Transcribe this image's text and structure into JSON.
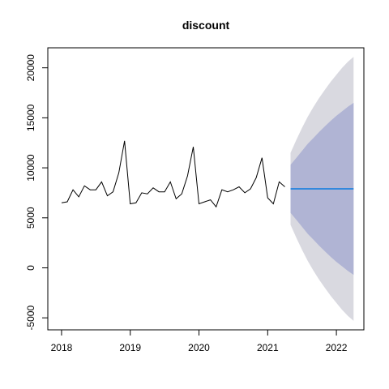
{
  "chart_data": {
    "type": "line",
    "title": "discount",
    "xlabel": "",
    "ylabel": "",
    "xlim": [
      2017.8,
      2022.4
    ],
    "ylim": [
      -6200,
      22000
    ],
    "x_ticks": [
      2018,
      2019,
      2020,
      2021,
      2022
    ],
    "x_tick_labels": [
      "2018",
      "2019",
      "2020",
      "2021",
      "2022"
    ],
    "y_ticks": [
      -5000,
      0,
      5000,
      10000,
      15000,
      20000
    ],
    "y_tick_labels": [
      "-5000",
      "0",
      "5000",
      "10000",
      "15000",
      "20000"
    ],
    "grid": false,
    "frequency": "monthly",
    "colors": {
      "observed": "#000000",
      "forecast": "#3388dd",
      "band_inner": "#b0b4d4",
      "band_outer": "#d9d9e0"
    },
    "series": [
      {
        "role": "observed",
        "x": [
          2018.0,
          2018.083,
          2018.167,
          2018.25,
          2018.333,
          2018.417,
          2018.5,
          2018.583,
          2018.667,
          2018.75,
          2018.833,
          2018.917,
          2019.0,
          2019.083,
          2019.167,
          2019.25,
          2019.333,
          2019.417,
          2019.5,
          2019.583,
          2019.667,
          2019.75,
          2019.833,
          2019.917,
          2020.0,
          2020.083,
          2020.167,
          2020.25,
          2020.333,
          2020.417,
          2020.5,
          2020.583,
          2020.667,
          2020.75,
          2020.833,
          2020.917,
          2021.0,
          2021.083,
          2021.167,
          2021.25
        ],
        "values": [
          6500,
          6600,
          7800,
          7100,
          8200,
          7800,
          7800,
          8600,
          7200,
          7600,
          9500,
          12700,
          6400,
          6500,
          7500,
          7400,
          8000,
          7600,
          7600,
          8600,
          6900,
          7400,
          9200,
          12100,
          6400,
          6600,
          6800,
          6100,
          7800,
          7600,
          7800,
          8100,
          7500,
          7900,
          9000,
          11000,
          7000,
          6400,
          8600,
          8100
        ]
      },
      {
        "role": "forecast",
        "x": [
          2021.333,
          2022.25
        ],
        "values": [
          7900,
          7900
        ]
      }
    ],
    "interval_80": {
      "x": [
        2021.333,
        2021.417,
        2021.5,
        2021.583,
        2021.667,
        2021.75,
        2021.833,
        2021.917,
        2022.0,
        2022.083,
        2022.167,
        2022.25
      ],
      "upper": [
        10300,
        11000,
        11700,
        12400,
        13000,
        13600,
        14150,
        14700,
        15200,
        15650,
        16100,
        16500
      ],
      "lower": [
        5500,
        4800,
        4100,
        3400,
        2800,
        2200,
        1650,
        1100,
        600,
        150,
        -300,
        -700
      ]
    },
    "interval_95": {
      "x": [
        2021.333,
        2021.417,
        2021.5,
        2021.583,
        2021.667,
        2021.75,
        2021.833,
        2021.917,
        2022.0,
        2022.083,
        2022.167,
        2022.25
      ],
      "upper": [
        11500,
        12800,
        14000,
        15100,
        16100,
        17000,
        17800,
        18600,
        19300,
        20000,
        20600,
        21100
      ],
      "lower": [
        4300,
        3000,
        1800,
        700,
        -300,
        -1200,
        -2000,
        -2800,
        -3500,
        -4200,
        -4800,
        -5300
      ]
    }
  }
}
